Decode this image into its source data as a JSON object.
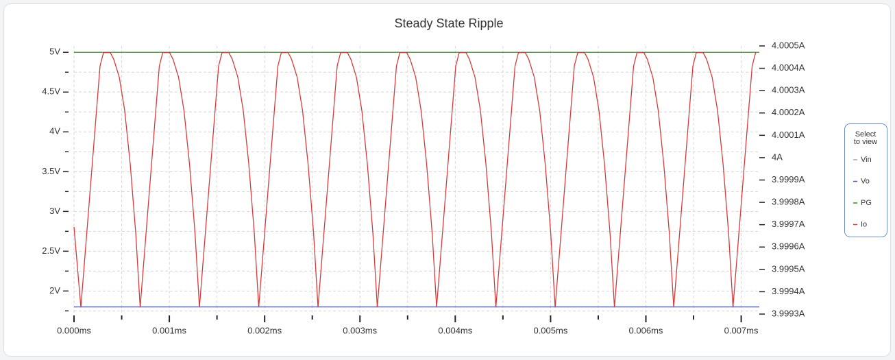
{
  "chart_data": {
    "type": "line",
    "title": "Steady State Ripple",
    "legend_title": "Select to view",
    "legend_position": "right",
    "grid": true,
    "xlim": [
      0,
      0.00719
    ],
    "xticks": [
      {
        "value": 0,
        "label": "0.000ms"
      },
      {
        "value": 0.001,
        "label": "0.001ms"
      },
      {
        "value": 0.002,
        "label": "0.002ms"
      },
      {
        "value": 0.003,
        "label": "0.003ms"
      },
      {
        "value": 0.004,
        "label": "0.004ms"
      },
      {
        "value": 0.005,
        "label": "0.005ms"
      },
      {
        "value": 0.006,
        "label": "0.006ms"
      },
      {
        "value": 0.007,
        "label": "0.007ms"
      }
    ],
    "xminorticks": [
      0.0005,
      0.0015,
      0.0025,
      0.0035,
      0.0045,
      0.0055,
      0.0065
    ],
    "ylim": [
      1.71,
      5.08
    ],
    "yticks": [
      {
        "value": 2,
        "label": "2V"
      },
      {
        "value": 2.5,
        "label": "2.5V"
      },
      {
        "value": 3,
        "label": "3V"
      },
      {
        "value": 3.5,
        "label": "3.5V"
      },
      {
        "value": 4,
        "label": "4V"
      },
      {
        "value": 4.5,
        "label": "4.5V"
      },
      {
        "value": 5,
        "label": "5V"
      }
    ],
    "yminorticks": [
      1.75,
      2.25,
      2.75,
      3.25,
      3.75,
      4.25,
      4.75
    ],
    "y2lim": [
      3.9993,
      4.0005
    ],
    "y2ticks": [
      {
        "value": 3.9993,
        "label": "3.9993A"
      },
      {
        "value": 3.9994,
        "label": "3.9994A"
      },
      {
        "value": 3.9995,
        "label": "3.9995A"
      },
      {
        "value": 3.9996,
        "label": "3.9996A"
      },
      {
        "value": 3.9997,
        "label": "3.9997A"
      },
      {
        "value": 3.9998,
        "label": "3.9998A"
      },
      {
        "value": 3.9999,
        "label": "3.9999A"
      },
      {
        "value": 4,
        "label": "4A"
      },
      {
        "value": 4.0001,
        "label": "4.0001A"
      },
      {
        "value": 4.0002,
        "label": "4.0002A"
      },
      {
        "value": 4.0003,
        "label": "4.0003A"
      },
      {
        "value": 4.0004,
        "label": "4.0004A"
      },
      {
        "value": 4.0005,
        "label": "4.0005A"
      }
    ],
    "series": [
      {
        "name": "Vin",
        "color": "#aaaaaa"
      },
      {
        "name": "Vo",
        "color": "#4a5fc8",
        "x": [
          0,
          0.00719
        ],
        "values": [
          1.8,
          1.8
        ]
      },
      {
        "name": "PG",
        "color": "#3a8a2a",
        "x": [
          0,
          0.00719
        ],
        "values": [
          5,
          5
        ]
      },
      {
        "name": "Io",
        "color": "#d83a3a",
        "axis": "y2",
        "x": [
          0,
          7.2e-05,
          0.000273,
          0.000309,
          0.000381,
          0.000417,
          0.000475,
          0.000532,
          0.00059,
          0.000648,
          0.000694,
          0.000895,
          0.000931,
          0.001003,
          0.001039,
          0.001097,
          0.001154,
          0.001212,
          0.00127,
          0.001316,
          0.001517,
          0.001553,
          0.001625,
          0.001661,
          0.001719,
          0.001776,
          0.001834,
          0.001892,
          0.001938,
          0.002139,
          0.002175,
          0.002247,
          0.002283,
          0.002341,
          0.002398,
          0.002456,
          0.002514,
          0.00256,
          0.002761,
          0.002797,
          0.002869,
          0.002905,
          0.002963,
          0.00302,
          0.003078,
          0.003136,
          0.003182,
          0.003383,
          0.003419,
          0.003491,
          0.003527,
          0.003585,
          0.003642,
          0.0037,
          0.003758,
          0.003804,
          0.004005,
          0.004041,
          0.004113,
          0.004149,
          0.004207,
          0.004264,
          0.004322,
          0.00438,
          0.004426,
          0.004627,
          0.004663,
          0.004735,
          0.004771,
          0.004829,
          0.004886,
          0.004944,
          0.005002,
          0.005048,
          0.005249,
          0.005285,
          0.005357,
          0.005393,
          0.005451,
          0.005508,
          0.005566,
          0.005624,
          0.00567,
          0.005871,
          0.005907,
          0.005979,
          0.006015,
          0.006073,
          0.00613,
          0.006188,
          0.006246,
          0.006292,
          0.006493,
          0.006529,
          0.006601,
          0.006637,
          0.006695,
          0.006752,
          0.00681,
          0.006868,
          0.006914,
          0.007115,
          0.007151
        ],
        "values": [
          3.99969,
          3.99933,
          4.00041,
          4.00047,
          4.00047,
          4.00044,
          4.00036,
          4.00021,
          3.99997,
          3.99966,
          3.99933,
          4.00041,
          4.00047,
          4.00047,
          4.00044,
          4.00036,
          4.00021,
          3.99997,
          3.99966,
          3.99933,
          4.00041,
          4.00047,
          4.00047,
          4.00044,
          4.00036,
          4.00021,
          3.99997,
          3.99966,
          3.99933,
          4.00041,
          4.00047,
          4.00047,
          4.00044,
          4.00036,
          4.00021,
          3.99997,
          3.99966,
          3.99933,
          4.00041,
          4.00047,
          4.00047,
          4.00044,
          4.00036,
          4.00021,
          3.99997,
          3.99966,
          3.99933,
          4.00041,
          4.00047,
          4.00047,
          4.00044,
          4.00036,
          4.00021,
          3.99997,
          3.99966,
          3.99933,
          4.00041,
          4.00047,
          4.00047,
          4.00044,
          4.00036,
          4.00021,
          3.99997,
          3.99966,
          3.99933,
          4.00041,
          4.00047,
          4.00047,
          4.00044,
          4.00036,
          4.00021,
          3.99997,
          3.99966,
          3.99933,
          4.00041,
          4.00047,
          4.00047,
          4.00044,
          4.00036,
          4.00021,
          3.99997,
          3.99966,
          3.99933,
          4.00041,
          4.00047,
          4.00047,
          4.00044,
          4.00036,
          4.00021,
          3.99997,
          3.99966,
          3.99933,
          4.00041,
          4.00047,
          4.00047,
          4.00044,
          4.00036,
          4.00021,
          3.99997,
          3.99966,
          3.99933,
          4.00041,
          4.00047
        ]
      }
    ]
  }
}
